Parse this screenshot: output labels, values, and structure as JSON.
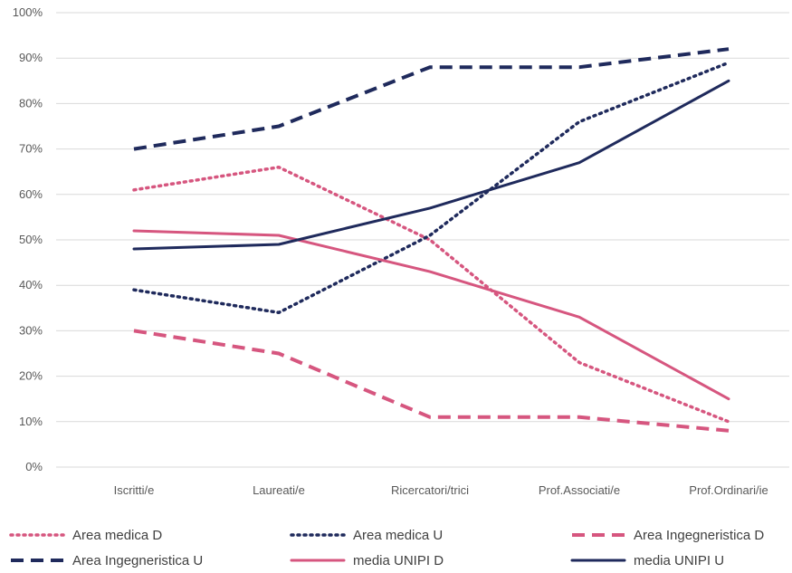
{
  "chart_data": {
    "type": "line",
    "title": "",
    "xlabel": "",
    "ylabel": "",
    "categories": [
      "Iscritti/e",
      "Laureati/e",
      "Ricercatori/trici",
      "Prof.Associati/e",
      "Prof.Ordinari/ie"
    ],
    "ylim": [
      0,
      100
    ],
    "yticks": [
      "0%",
      "10%",
      "20%",
      "30%",
      "40%",
      "50%",
      "60%",
      "70%",
      "80%",
      "90%",
      "100%"
    ],
    "grid": true,
    "legend_position": "bottom",
    "series": [
      {
        "name": "Area medica D",
        "values": [
          61,
          66,
          50,
          23,
          10
        ],
        "color": "#d6567f",
        "style": "dotted"
      },
      {
        "name": "Area medica U",
        "values": [
          39,
          34,
          51,
          76,
          89
        ],
        "color": "#1f2a5c",
        "style": "dotted"
      },
      {
        "name": "Area Ingegneristica D",
        "values": [
          30,
          25,
          11,
          11,
          8
        ],
        "color": "#d6567f",
        "style": "dashed"
      },
      {
        "name": "Area Ingegneristica U",
        "values": [
          70,
          75,
          88,
          88,
          92
        ],
        "color": "#1f2a5c",
        "style": "dashed"
      },
      {
        "name": "media UNIPI D",
        "values": [
          52,
          51,
          43,
          33,
          15
        ],
        "color": "#d6567f",
        "style": "solid"
      },
      {
        "name": "media UNIPI U",
        "values": [
          48,
          49,
          57,
          67,
          85
        ],
        "color": "#1f2a5c",
        "style": "solid"
      }
    ]
  }
}
